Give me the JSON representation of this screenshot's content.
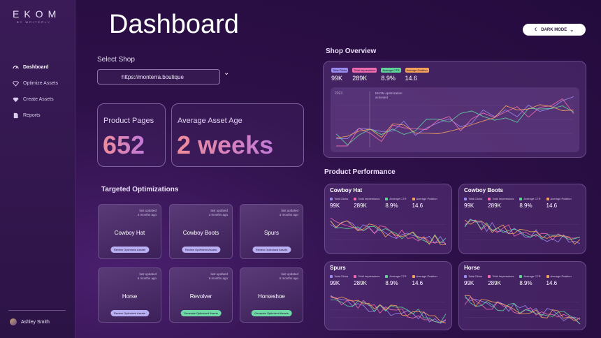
{
  "brand": {
    "name": "EKOM",
    "sub": "BY WRITERLY"
  },
  "nav": [
    {
      "label": "Dashboard",
      "icon": "gauge-icon"
    },
    {
      "label": "Optimize Assets",
      "icon": "diamond-icon"
    },
    {
      "label": "Create Assets",
      "icon": "gem-icon"
    },
    {
      "label": "Reports",
      "icon": "document-icon"
    }
  ],
  "user": {
    "name": "Ashley Smith"
  },
  "page": {
    "title": "Dashboard"
  },
  "dark_mode": {
    "label": "DARK MODE"
  },
  "shop": {
    "label": "Select Shop",
    "value": "https://monterra.boutique"
  },
  "stats": [
    {
      "label": "Product Pages",
      "value": "652"
    },
    {
      "label": "Average Asset Age",
      "value": "2 weeks"
    }
  ],
  "targeted": {
    "title": "Targeted Optimizations",
    "cards": [
      {
        "name": "Cowboy Hat",
        "updated": "4 months ago",
        "action": "Review Optimized Assets",
        "kind": "review"
      },
      {
        "name": "Cowboy Boots",
        "updated": "3 months ago",
        "action": "Review Optimized Assets",
        "kind": "review"
      },
      {
        "name": "Spurs",
        "updated": "3 months ago",
        "action": "Review Optimized Assets",
        "kind": "review"
      },
      {
        "name": "Horse",
        "updated": "5 months ago",
        "action": "Review Optimized Assets",
        "kind": "review"
      },
      {
        "name": "Revolver",
        "updated": "6 months ago",
        "action": "Generate Optimized Assets",
        "kind": "gen"
      },
      {
        "name": "Horseshoe",
        "updated": "6 months ago",
        "action": "Generate Optimized Assets",
        "kind": "gen"
      }
    ],
    "last_updated_label": "last updated"
  },
  "overview": {
    "title": "Shop Overview",
    "annotation_year": "2023",
    "annotation": "EKOM optimization activated",
    "metrics": [
      {
        "label": "Total Clicks",
        "value": "99K",
        "color": "#9b8cf0"
      },
      {
        "label": "Total Impressions",
        "value": "289K",
        "color": "#f06bb0"
      },
      {
        "label": "Average CTR",
        "value": "8.9%",
        "color": "#5fd49a"
      },
      {
        "label": "Average Position",
        "value": "14.6",
        "color": "#f4a25c"
      }
    ]
  },
  "performance": {
    "title": "Product Performance",
    "products": [
      {
        "name": "Cowboy Hat"
      },
      {
        "name": "Cowboy Boots"
      },
      {
        "name": "Spurs"
      },
      {
        "name": "Horse"
      }
    ],
    "metrics": [
      {
        "label": "Total Clicks",
        "value": "99K",
        "color": "#9b8cf0"
      },
      {
        "label": "Total Impressions",
        "value": "289K",
        "color": "#f06bb0"
      },
      {
        "label": "Average CTR",
        "value": "8.9%",
        "color": "#5fd49a"
      },
      {
        "label": "Average Position",
        "value": "14.6",
        "color": "#f4a25c"
      }
    ]
  }
}
